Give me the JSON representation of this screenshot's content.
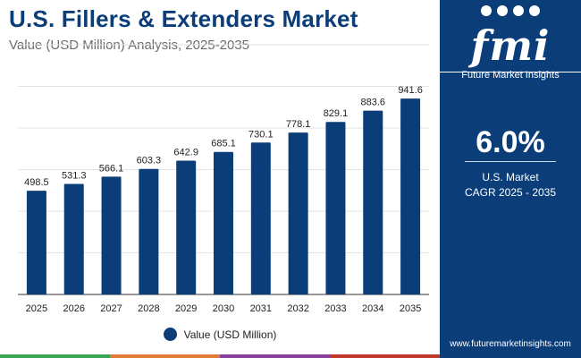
{
  "header": {
    "title": "U.S. Fillers & Extenders Market",
    "subtitle": "Value (USD Million) Analysis, 2025-2035"
  },
  "chart_data": {
    "type": "bar",
    "categories": [
      "2025",
      "2026",
      "2027",
      "2028",
      "2029",
      "2030",
      "2031",
      "2032",
      "2033",
      "2034",
      "2035"
    ],
    "series": [
      {
        "name": "Value (USD Million)",
        "values": [
          498.5,
          531.3,
          566.1,
          603.3,
          642.9,
          685.1,
          730.1,
          778.1,
          829.1,
          883.6,
          941.6
        ]
      }
    ],
    "ylim": [
      0,
      1200
    ],
    "grid": true,
    "legend": "bottom-center",
    "bar_color": "#0b3d79"
  },
  "legend": {
    "label": "Value (USD Million)"
  },
  "side_panel": {
    "logo_text": "fmi",
    "logo_subtitle": "Future Market Insights",
    "cagr_value": "6.0%",
    "cagr_label_line1": "U.S. Market",
    "cagr_label_line2": "CAGR 2025 - 2035",
    "website": "www.futuremarketinsights.com"
  },
  "colors": {
    "brand": "#0b3d79",
    "bottom_bar": [
      "#3aa655",
      "#e07b39",
      "#8a3e9e",
      "#c0392b"
    ]
  }
}
